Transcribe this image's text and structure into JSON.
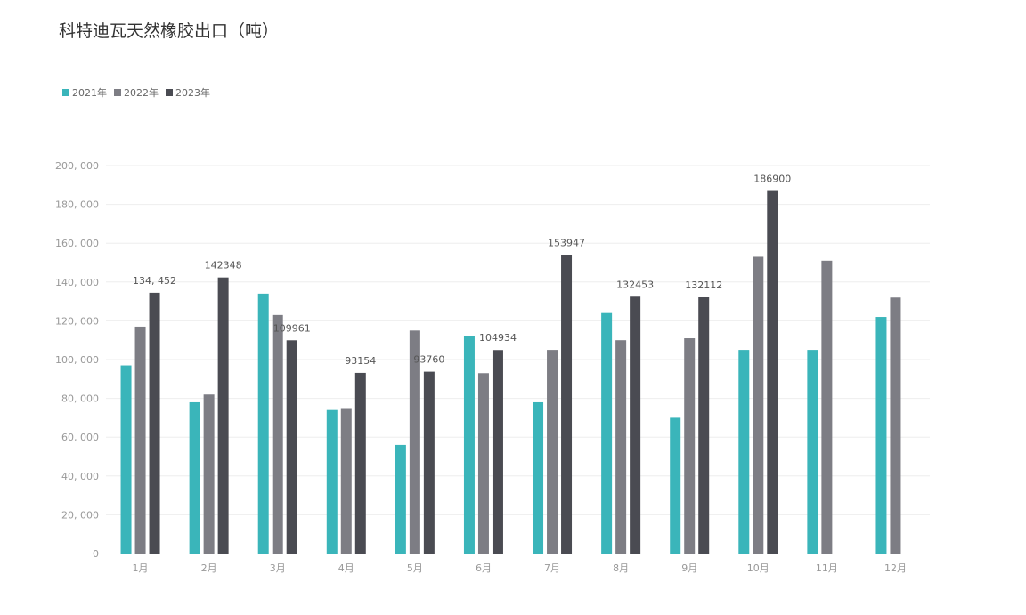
{
  "chart_data": {
    "type": "bar",
    "title": "科特迪瓦天然橡胶出口（吨）",
    "categories": [
      "1月",
      "2月",
      "3月",
      "4月",
      "5月",
      "6月",
      "7月",
      "8月",
      "9月",
      "10月",
      "11月",
      "12月"
    ],
    "series": [
      {
        "name": "2021年",
        "color": "#3ab5ba",
        "values": [
          97000,
          78000,
          134000,
          74000,
          56000,
          112000,
          78000,
          124000,
          70000,
          105000,
          105000,
          122000
        ]
      },
      {
        "name": "2022年",
        "color": "#7d7d84",
        "values": [
          117000,
          82000,
          123000,
          75000,
          115000,
          93000,
          105000,
          110000,
          111000,
          153000,
          151000,
          132000
        ]
      },
      {
        "name": "2023年",
        "color": "#4a4b52",
        "values": [
          134452,
          142348,
          109961,
          93154,
          93760,
          104934,
          153947,
          132453,
          132112,
          186900,
          null,
          null
        ],
        "labels": [
          "134, 452",
          "142348",
          "109961",
          "93154",
          "93760",
          "104934",
          "153947",
          "132453",
          "132112",
          "186900",
          "",
          ""
        ]
      }
    ],
    "ylim": [
      0,
      200000
    ],
    "yticks": [
      "0",
      "20, 000",
      "40, 000",
      "60, 000",
      "80, 000",
      "100, 000",
      "120, 000",
      "140, 000",
      "160, 000",
      "180, 000",
      "200, 000"
    ],
    "grid": true,
    "legend_position": "top-left"
  }
}
